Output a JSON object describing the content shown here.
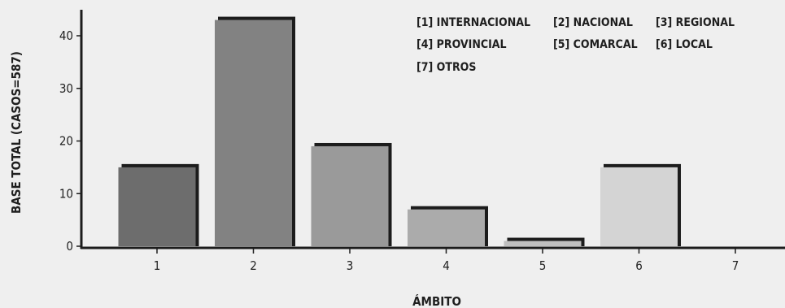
{
  "chart_data": {
    "type": "bar",
    "categories": [
      "1",
      "2",
      "3",
      "4",
      "5",
      "6",
      "7"
    ],
    "values": [
      15,
      43,
      19,
      7,
      1,
      15,
      0
    ],
    "xlabel": "ÁMBITO",
    "ylabel": "BASE TOTAL (CASOS=587)",
    "ylim": [
      0,
      45
    ],
    "yticks": [
      0,
      10,
      20,
      30,
      40
    ],
    "grid": false,
    "legend_position": "top-right",
    "legend": [
      "[1] INTERNACIONAL",
      "[2] NACIONAL",
      "[3] REGIONAL",
      "[4] PROVINCIAL",
      "[5] COMARCAL",
      "[6] LOCAL",
      "[7]  OTROS"
    ],
    "bar_colors": [
      "#6d6d6d",
      "#828282",
      "#9a9a9a",
      "#ababab",
      "#bfbfbf",
      "#d4d4d4",
      "#e0e0e0"
    ],
    "shadow_color": "#1c1c1c",
    "axis_color": "#1c1c1c",
    "background": "#efefef"
  }
}
